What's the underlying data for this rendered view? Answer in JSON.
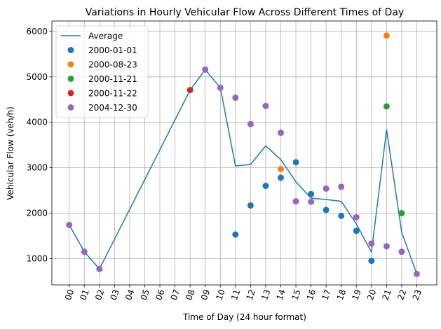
{
  "chart_data": {
    "type": "line+scatter",
    "title": "Variations in Hourly Vehicular Flow Across Different Times of Day",
    "xlabel": "Time of Day (24 hour format)",
    "ylabel": "Vehicular Flow (veh/h)",
    "categories": [
      "00",
      "01",
      "02",
      "03",
      "04",
      "05",
      "06",
      "07",
      "08",
      "09",
      "10",
      "11",
      "12",
      "13",
      "14",
      "15",
      "16",
      "17",
      "18",
      "19",
      "20",
      "21",
      "22",
      "23"
    ],
    "ylim": [
      420,
      6230
    ],
    "yticks": [
      1000,
      2000,
      3000,
      4000,
      5000,
      6000
    ],
    "grid": true,
    "legend_position": "top-left",
    "line_series": {
      "name": "Average",
      "color": "#1f77b4",
      "points": [
        {
          "x": "00",
          "y": 1740
        },
        {
          "x": "01",
          "y": 1150
        },
        {
          "x": "02",
          "y": 770
        },
        {
          "x": "08",
          "y": 4710
        },
        {
          "x": "09",
          "y": 5160
        },
        {
          "x": "10",
          "y": 4760
        },
        {
          "x": "11",
          "y": 3040
        },
        {
          "x": "12",
          "y": 3070
        },
        {
          "x": "13",
          "y": 3480
        },
        {
          "x": "14",
          "y": 3180
        },
        {
          "x": "15",
          "y": 2690
        },
        {
          "x": "16",
          "y": 2330
        },
        {
          "x": "17",
          "y": 2300
        },
        {
          "x": "18",
          "y": 2260
        },
        {
          "x": "19",
          "y": 1760
        },
        {
          "x": "20",
          "y": 1140
        },
        {
          "x": "21",
          "y": 3840
        },
        {
          "x": "22",
          "y": 1580
        },
        {
          "x": "23",
          "y": 660
        }
      ]
    },
    "scatter_series": [
      {
        "name": "2000-01-01",
        "color": "#1f77b4",
        "points": [
          {
            "x": "11",
            "y": 1530
          },
          {
            "x": "12",
            "y": 2170
          },
          {
            "x": "13",
            "y": 2600
          },
          {
            "x": "14",
            "y": 2780
          },
          {
            "x": "15",
            "y": 3120
          },
          {
            "x": "16",
            "y": 2420
          },
          {
            "x": "17",
            "y": 2070
          },
          {
            "x": "18",
            "y": 1940
          },
          {
            "x": "19",
            "y": 1610
          },
          {
            "x": "20",
            "y": 950
          }
        ]
      },
      {
        "name": "2000-08-23",
        "color": "#ff7f0e",
        "points": [
          {
            "x": "14",
            "y": 2970
          },
          {
            "x": "21",
            "y": 5910
          }
        ]
      },
      {
        "name": "2000-11-21",
        "color": "#2ca02c",
        "points": [
          {
            "x": "21",
            "y": 4350
          },
          {
            "x": "22",
            "y": 2000
          }
        ]
      },
      {
        "name": "2000-11-22",
        "color": "#d62728",
        "points": [
          {
            "x": "08",
            "y": 4710
          }
        ]
      },
      {
        "name": "2004-12-30",
        "color": "#9467bd",
        "points": [
          {
            "x": "00",
            "y": 1740
          },
          {
            "x": "01",
            "y": 1150
          },
          {
            "x": "02",
            "y": 770
          },
          {
            "x": "09",
            "y": 5160
          },
          {
            "x": "10",
            "y": 4760
          },
          {
            "x": "11",
            "y": 4540
          },
          {
            "x": "12",
            "y": 3960
          },
          {
            "x": "13",
            "y": 4360
          },
          {
            "x": "14",
            "y": 3770
          },
          {
            "x": "15",
            "y": 2260
          },
          {
            "x": "16",
            "y": 2250
          },
          {
            "x": "17",
            "y": 2540
          },
          {
            "x": "18",
            "y": 2580
          },
          {
            "x": "19",
            "y": 1910
          },
          {
            "x": "20",
            "y": 1330
          },
          {
            "x": "21",
            "y": 1270
          },
          {
            "x": "22",
            "y": 1150
          },
          {
            "x": "23",
            "y": 660
          }
        ]
      }
    ]
  }
}
